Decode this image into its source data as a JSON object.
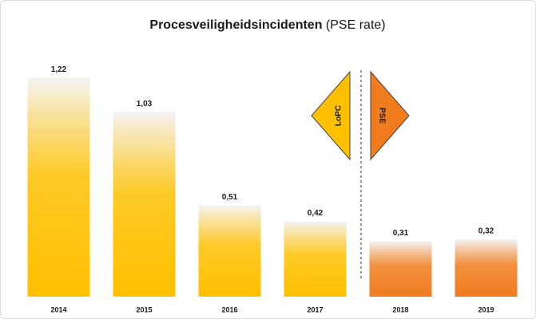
{
  "chart_data": {
    "type": "bar",
    "title": "Procesveiligheidsincidenten",
    "title_suffix": "(PSE rate)",
    "categories": [
      "2014",
      "2015",
      "2016",
      "2017",
      "2018",
      "2019"
    ],
    "values": [
      1.22,
      1.03,
      0.51,
      0.42,
      0.31,
      0.32
    ],
    "value_labels": [
      "1,22",
      "1,03",
      "0,51",
      "0,42",
      "0,31",
      "0,32"
    ],
    "colors": [
      "#ffc000",
      "#ffc000",
      "#ffc000",
      "#ffc000",
      "#f07c1e",
      "#f07c1e"
    ],
    "ylim": [
      0,
      1.3
    ],
    "annotations": [
      "LoPC",
      "PSE"
    ]
  }
}
